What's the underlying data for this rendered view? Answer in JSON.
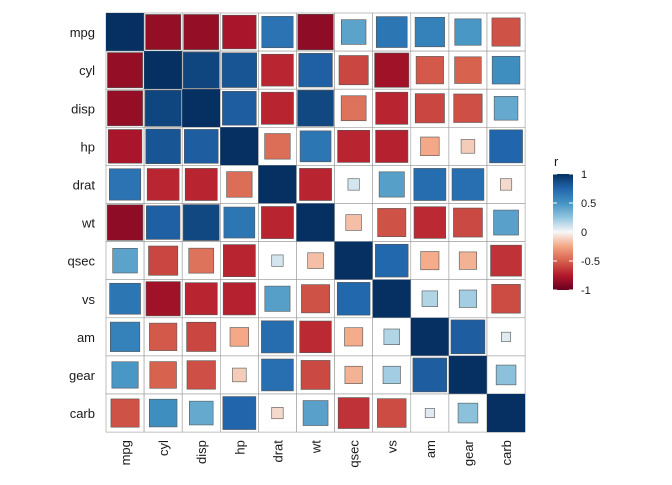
{
  "chart_data": {
    "type": "heatmap",
    "subtype": "correlation-matrix",
    "glyph": "square",
    "glyph_size_encodes": "absolute correlation",
    "variables": [
      "mpg",
      "cyl",
      "disp",
      "hp",
      "drat",
      "wt",
      "qsec",
      "vs",
      "am",
      "gear",
      "carb"
    ],
    "matrix": [
      [
        1.0,
        -0.85,
        -0.85,
        -0.78,
        0.68,
        -0.87,
        0.42,
        0.66,
        0.6,
        0.48,
        -0.55
      ],
      [
        -0.85,
        1.0,
        0.9,
        0.83,
        -0.7,
        0.78,
        -0.59,
        -0.81,
        -0.52,
        -0.49,
        0.53
      ],
      [
        -0.85,
        0.9,
        1.0,
        0.79,
        -0.71,
        0.89,
        -0.43,
        -0.71,
        -0.59,
        -0.56,
        0.39
      ],
      [
        -0.78,
        0.83,
        0.79,
        1.0,
        -0.45,
        0.66,
        -0.71,
        -0.72,
        -0.24,
        -0.13,
        0.75
      ],
      [
        0.68,
        -0.7,
        -0.71,
        -0.45,
        1.0,
        -0.71,
        0.09,
        0.44,
        0.71,
        0.7,
        -0.09
      ],
      [
        -0.87,
        0.78,
        0.89,
        0.66,
        -0.71,
        1.0,
        -0.17,
        -0.55,
        -0.69,
        -0.58,
        0.43
      ],
      [
        0.42,
        -0.59,
        -0.43,
        -0.71,
        0.09,
        -0.17,
        1.0,
        0.74,
        -0.23,
        -0.21,
        -0.66
      ],
      [
        0.66,
        -0.81,
        -0.71,
        -0.72,
        0.44,
        -0.55,
        0.74,
        1.0,
        0.17,
        0.21,
        -0.57
      ],
      [
        0.6,
        -0.52,
        -0.59,
        -0.24,
        0.71,
        -0.69,
        -0.23,
        0.17,
        1.0,
        0.79,
        0.06
      ],
      [
        0.48,
        -0.49,
        -0.56,
        -0.13,
        0.7,
        -0.58,
        -0.21,
        0.21,
        0.79,
        1.0,
        0.27
      ],
      [
        -0.55,
        0.53,
        0.39,
        0.75,
        -0.09,
        0.43,
        -0.66,
        -0.57,
        0.06,
        0.27,
        1.0
      ]
    ],
    "legend": {
      "title": "r",
      "placement": "right",
      "range": [
        -1,
        1
      ],
      "breaks": [
        1,
        0.5,
        0,
        -0.5,
        -1
      ],
      "break_labels": [
        "1",
        "0.5",
        "0",
        "-0.5",
        "-1"
      ]
    },
    "colors": {
      "low": "#67001F",
      "mid": "#F7F7F7",
      "high": "#053061",
      "cell_border": "#999999",
      "glyph_border": "#555555",
      "text": "#1a1a1a"
    }
  }
}
